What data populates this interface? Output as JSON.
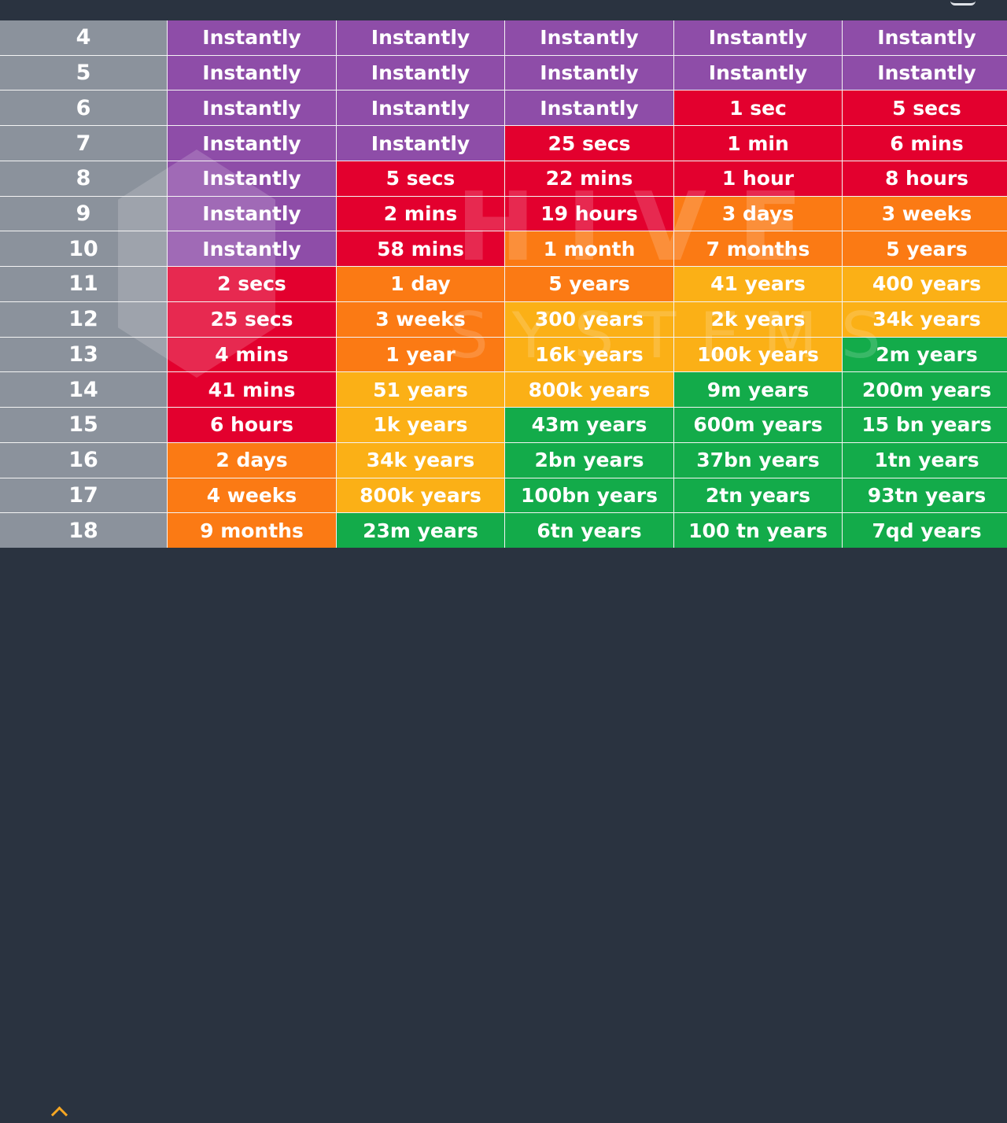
{
  "chart_data": {
    "type": "table",
    "rows": [
      {
        "label": "4",
        "cells": [
          [
            "Instantly",
            "purple"
          ],
          [
            "Instantly",
            "purple"
          ],
          [
            "Instantly",
            "purple"
          ],
          [
            "Instantly",
            "purple"
          ],
          [
            "Instantly",
            "purple"
          ]
        ]
      },
      {
        "label": "5",
        "cells": [
          [
            "Instantly",
            "purple"
          ],
          [
            "Instantly",
            "purple"
          ],
          [
            "Instantly",
            "purple"
          ],
          [
            "Instantly",
            "purple"
          ],
          [
            "Instantly",
            "purple"
          ]
        ]
      },
      {
        "label": "6",
        "cells": [
          [
            "Instantly",
            "purple"
          ],
          [
            "Instantly",
            "purple"
          ],
          [
            "Instantly",
            "purple"
          ],
          [
            "1 sec",
            "red"
          ],
          [
            "5 secs",
            "red"
          ]
        ]
      },
      {
        "label": "7",
        "cells": [
          [
            "Instantly",
            "purple"
          ],
          [
            "Instantly",
            "purple"
          ],
          [
            "25 secs",
            "red"
          ],
          [
            "1 min",
            "red"
          ],
          [
            "6 mins",
            "red"
          ]
        ]
      },
      {
        "label": "8",
        "cells": [
          [
            "Instantly",
            "purple"
          ],
          [
            "5 secs",
            "red"
          ],
          [
            "22 mins",
            "red"
          ],
          [
            "1 hour",
            "red"
          ],
          [
            "8 hours",
            "red"
          ]
        ]
      },
      {
        "label": "9",
        "cells": [
          [
            "Instantly",
            "purple"
          ],
          [
            "2 mins",
            "red"
          ],
          [
            "19 hours",
            "red"
          ],
          [
            "3 days",
            "orange"
          ],
          [
            "3 weeks",
            "orange"
          ]
        ]
      },
      {
        "label": "10",
        "cells": [
          [
            "Instantly",
            "purple"
          ],
          [
            "58 mins",
            "red"
          ],
          [
            "1 month",
            "orange"
          ],
          [
            "7 months",
            "orange"
          ],
          [
            "5 years",
            "orange"
          ]
        ]
      },
      {
        "label": "11",
        "cells": [
          [
            "2 secs",
            "red"
          ],
          [
            "1 day",
            "orange"
          ],
          [
            "5 years",
            "orange"
          ],
          [
            "41 years",
            "yellow"
          ],
          [
            "400 years",
            "yellow"
          ]
        ]
      },
      {
        "label": "12",
        "cells": [
          [
            "25 secs",
            "red"
          ],
          [
            "3 weeks",
            "orange"
          ],
          [
            "300 years",
            "yellow"
          ],
          [
            "2k years",
            "yellow"
          ],
          [
            "34k years",
            "yellow"
          ]
        ]
      },
      {
        "label": "13",
        "cells": [
          [
            "4 mins",
            "red"
          ],
          [
            "1 year",
            "orange"
          ],
          [
            "16k years",
            "yellow"
          ],
          [
            "100k years",
            "yellow"
          ],
          [
            "2m years",
            "green"
          ]
        ]
      },
      {
        "label": "14",
        "cells": [
          [
            "41 mins",
            "red"
          ],
          [
            "51 years",
            "yellow"
          ],
          [
            "800k years",
            "yellow"
          ],
          [
            "9m years",
            "green"
          ],
          [
            "200m years",
            "green"
          ]
        ]
      },
      {
        "label": "15",
        "cells": [
          [
            "6 hours",
            "red"
          ],
          [
            "1k years",
            "yellow"
          ],
          [
            "43m years",
            "green"
          ],
          [
            "600m years",
            "green"
          ],
          [
            "15 bn years",
            "green"
          ]
        ]
      },
      {
        "label": "16",
        "cells": [
          [
            "2 days",
            "orange"
          ],
          [
            "34k years",
            "yellow"
          ],
          [
            "2bn years",
            "green"
          ],
          [
            "37bn years",
            "green"
          ],
          [
            "1tn years",
            "green"
          ]
        ]
      },
      {
        "label": "17",
        "cells": [
          [
            "4 weeks",
            "orange"
          ],
          [
            "800k years",
            "yellow"
          ],
          [
            "100bn years",
            "green"
          ],
          [
            "2tn years",
            "green"
          ],
          [
            "93tn years",
            "green"
          ]
        ]
      },
      {
        "label": "18",
        "cells": [
          [
            "9 months",
            "orange"
          ],
          [
            "23m years",
            "green"
          ],
          [
            "6tn years",
            "green"
          ],
          [
            "100 tn years",
            "green"
          ],
          [
            "7qd years",
            "green"
          ]
        ]
      }
    ]
  },
  "colors": {
    "purple": "#8e4da8",
    "red": "#e3002e",
    "orange": "#fb7a14",
    "yellow": "#fbb016",
    "green": "#13ab4a",
    "row_header": "#8b929c",
    "background": "#2a3340"
  },
  "watermark": {
    "line1": "HIVE",
    "line2": "SYSTEMS"
  }
}
